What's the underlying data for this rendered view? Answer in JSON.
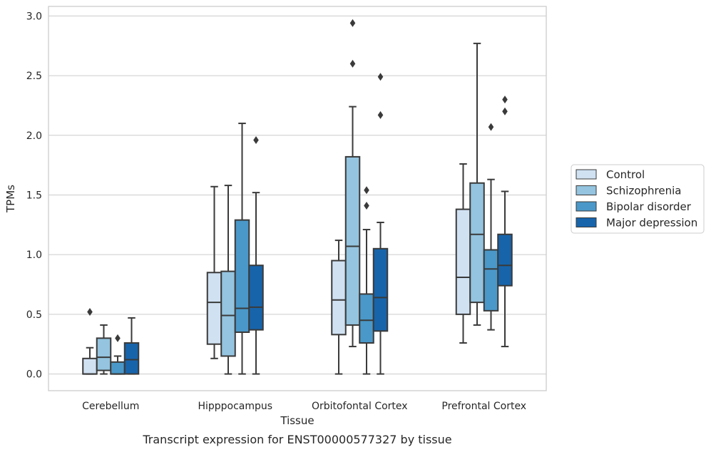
{
  "chart_data": {
    "type": "boxplot",
    "caption": "Transcript expression for ENST00000577327 by tissue",
    "xlabel": "Tissue",
    "ylabel": "TPMs",
    "ylim": [
      -0.14,
      3.08
    ],
    "yticks": [
      "0.0",
      "0.5",
      "1.0",
      "1.5",
      "2.0",
      "2.5",
      "3.0"
    ],
    "ytick_values": [
      0,
      0.5,
      1.0,
      1.5,
      2.0,
      2.5,
      3.0
    ],
    "grid": "horizontal",
    "legend_position": "right",
    "categories": [
      "Cerebellum",
      "Hipppocampus",
      "Orbitofontal Cortex",
      "Prefrontal Cortex"
    ],
    "series": [
      {
        "name": "Control",
        "color": "#d0e1f2",
        "boxes": [
          {
            "whislo": 0.0,
            "q1": 0.0,
            "med": 0.0,
            "q3": 0.13,
            "whishi": 0.22,
            "fliers": [
              0.52
            ]
          },
          {
            "whislo": 0.13,
            "q1": 0.25,
            "med": 0.6,
            "q3": 0.85,
            "whishi": 1.57,
            "fliers": []
          },
          {
            "whislo": 0.0,
            "q1": 0.33,
            "med": 0.62,
            "q3": 0.95,
            "whishi": 1.12,
            "fliers": []
          },
          {
            "whislo": 0.26,
            "q1": 0.5,
            "med": 0.81,
            "q3": 1.38,
            "whishi": 1.76,
            "fliers": []
          }
        ]
      },
      {
        "name": "Schizophrenia",
        "color": "#94c4df",
        "boxes": [
          {
            "whislo": 0.0,
            "q1": 0.03,
            "med": 0.14,
            "q3": 0.3,
            "whishi": 0.41,
            "fliers": []
          },
          {
            "whislo": 0.0,
            "q1": 0.15,
            "med": 0.49,
            "q3": 0.86,
            "whishi": 1.58,
            "fliers": []
          },
          {
            "whislo": 0.23,
            "q1": 0.41,
            "med": 1.07,
            "q3": 1.82,
            "whishi": 2.24,
            "fliers": [
              2.6,
              2.94
            ]
          },
          {
            "whislo": 0.41,
            "q1": 0.6,
            "med": 1.17,
            "q3": 1.6,
            "whishi": 2.77,
            "fliers": []
          }
        ]
      },
      {
        "name": "Bipolar disorder",
        "color": "#4a98c9",
        "boxes": [
          {
            "whislo": 0.0,
            "q1": 0.0,
            "med": 0.0,
            "q3": 0.1,
            "whishi": 0.15,
            "fliers": [
              0.3
            ]
          },
          {
            "whislo": 0.0,
            "q1": 0.35,
            "med": 0.55,
            "q3": 1.29,
            "whishi": 2.1,
            "fliers": []
          },
          {
            "whislo": 0.0,
            "q1": 0.26,
            "med": 0.45,
            "q3": 0.67,
            "whishi": 1.21,
            "fliers": [
              1.41,
              1.54
            ]
          },
          {
            "whislo": 0.37,
            "q1": 0.53,
            "med": 0.88,
            "q3": 1.04,
            "whishi": 1.63,
            "fliers": [
              2.07
            ]
          }
        ]
      },
      {
        "name": "Major depression",
        "color": "#1764ab",
        "boxes": [
          {
            "whislo": 0.0,
            "q1": 0.0,
            "med": 0.12,
            "q3": 0.26,
            "whishi": 0.47,
            "fliers": []
          },
          {
            "whislo": 0.0,
            "q1": 0.37,
            "med": 0.56,
            "q3": 0.91,
            "whishi": 1.52,
            "fliers": [
              1.96
            ]
          },
          {
            "whislo": 0.0,
            "q1": 0.36,
            "med": 0.64,
            "q3": 1.05,
            "whishi": 1.27,
            "fliers": [
              2.17,
              2.49
            ]
          },
          {
            "whislo": 0.23,
            "q1": 0.74,
            "med": 0.91,
            "q3": 1.17,
            "whishi": 1.53,
            "fliers": [
              2.2,
              2.3
            ]
          }
        ]
      }
    ]
  }
}
